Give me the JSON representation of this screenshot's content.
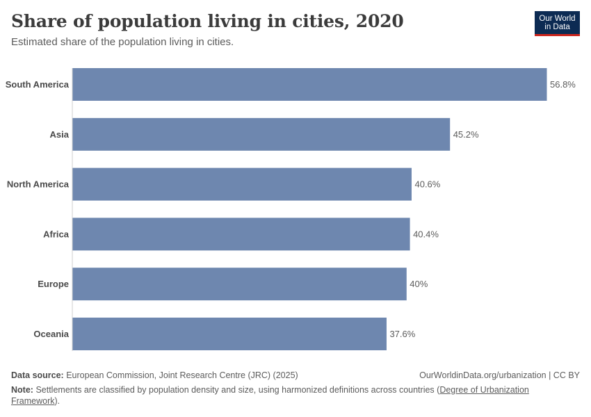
{
  "header": {
    "title": "Share of population living in cities, 2020",
    "subtitle": "Estimated share of the population living in cities."
  },
  "logo": {
    "line1": "Our World",
    "line2": "in Data"
  },
  "chart_data": {
    "type": "bar",
    "orientation": "horizontal",
    "categories": [
      "South America",
      "Asia",
      "North America",
      "Africa",
      "Europe",
      "Oceania"
    ],
    "values": [
      56.8,
      45.2,
      40.6,
      40.4,
      40,
      37.6
    ],
    "value_labels": [
      "56.8%",
      "45.2%",
      "40.6%",
      "40.4%",
      "40%",
      "37.6%"
    ],
    "unit": "%",
    "xlim": [
      0,
      56.8
    ],
    "bar_color": "#6e87af",
    "grid": false
  },
  "footer": {
    "source_label": "Data source:",
    "source_text": "European Commission, Joint Research Centre (JRC) (2025)",
    "url_text": "OurWorldinData.org/urbanization | CC BY",
    "note_label": "Note:",
    "note_text": "Settlements are classified by population density and size, using harmonized definitions across countries (",
    "note_link": "Degree of Urbanization Framework",
    "note_end": ")."
  },
  "colors": {
    "title": "#3b3b3b",
    "text": "#5b5b5b",
    "logo_bg": "#0c2b53",
    "logo_accent": "#ce261e"
  }
}
